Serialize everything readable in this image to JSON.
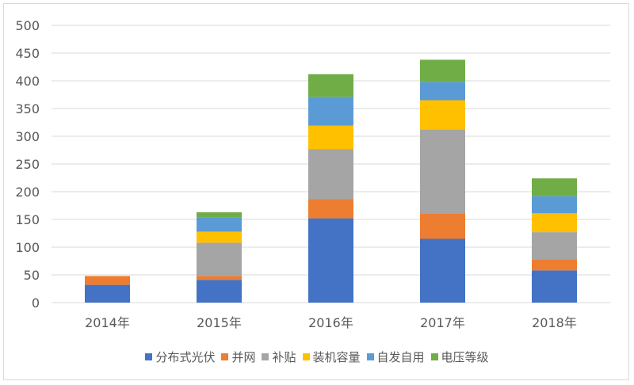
{
  "chart_data": {
    "type": "bar",
    "stacked": true,
    "categories": [
      "2014年",
      "2015年",
      "2016年",
      "2017年",
      "2018年"
    ],
    "series": [
      {
        "name": "分布式光伏",
        "color": "#4472C4",
        "values": [
          32,
          41,
          152,
          115,
          58
        ]
      },
      {
        "name": "并网",
        "color": "#ED7D31",
        "values": [
          16,
          7,
          35,
          45,
          20
        ]
      },
      {
        "name": "补贴",
        "color": "#A5A5A5",
        "values": [
          0,
          60,
          90,
          152,
          49
        ]
      },
      {
        "name": "装机容量",
        "color": "#FFC000",
        "values": [
          0,
          20,
          42,
          53,
          34
        ]
      },
      {
        "name": "自发自用",
        "color": "#5B9BD5",
        "values": [
          0,
          25,
          52,
          33,
          31
        ]
      },
      {
        "name": "电压等级",
        "color": "#70AD47",
        "values": [
          0,
          10,
          41,
          40,
          32
        ]
      }
    ],
    "ylim": [
      0,
      500
    ],
    "yticks": [
      0,
      50,
      100,
      150,
      200,
      250,
      300,
      350,
      400,
      450,
      500
    ],
    "grid": true,
    "legend": "bottom",
    "title": "",
    "xlabel": "",
    "ylabel": ""
  }
}
